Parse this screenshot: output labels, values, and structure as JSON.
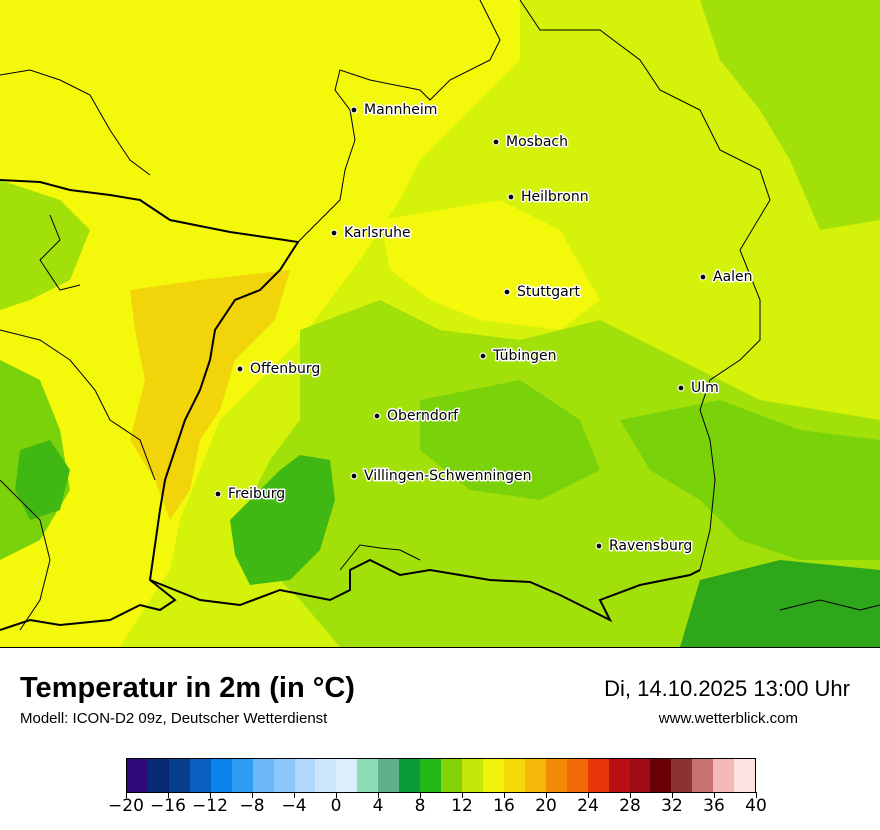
{
  "title": "Temperatur in 2m (in °C)",
  "subtitle": "Modell: ICON-D2 09z, Deutscher Wetterdienst",
  "datetime": "Di, 14.10.2025 13:00 Uhr",
  "website": "www.wetterblick.com",
  "cities": [
    {
      "name": "Mannheim"
    },
    {
      "name": "Mosbach"
    },
    {
      "name": "Heilbronn"
    },
    {
      "name": "Karlsruhe"
    },
    {
      "name": "Aalen"
    },
    {
      "name": "Stuttgart"
    },
    {
      "name": "Tübingen"
    },
    {
      "name": "Offenburg"
    },
    {
      "name": "Ulm"
    },
    {
      "name": "Oberndorf"
    },
    {
      "name": "Villingen-Schwenningen"
    },
    {
      "name": "Freiburg"
    },
    {
      "name": "Ravensburg"
    }
  ],
  "colorbar": {
    "colors": [
      "#2e0a7a",
      "#0a2a78",
      "#083f8c",
      "#0a5fc0",
      "#0a83ec",
      "#2e9cf5",
      "#6cb8fa",
      "#8cc8fb",
      "#afd8fc",
      "#cde6fd",
      "#dcedfd",
      "#8fdcb8",
      "#5fb088",
      "#0a9a3a",
      "#22b81a",
      "#82d20a",
      "#c4e60a",
      "#eff20a",
      "#f4d80a",
      "#f4b808",
      "#f28a0a",
      "#f26a0a",
      "#e8380a",
      "#b80e14",
      "#a00a12",
      "#6a0008",
      "#8c3232",
      "#c47272",
      "#f4b8b8",
      "#fde2e2"
    ],
    "tick_labels": [
      "−20",
      "−16",
      "−12",
      "−8",
      "−4",
      "0",
      "4",
      "8",
      "12",
      "16",
      "20",
      "24",
      "28",
      "32",
      "36",
      "40"
    ]
  },
  "legend_colors": {
    "warmest": "#f2d40a",
    "warm": "#f4f80a",
    "mild": "#d4f20a",
    "cool": "#a2e00a",
    "cooler": "#7ad20a",
    "coolest": "#40b814"
  }
}
